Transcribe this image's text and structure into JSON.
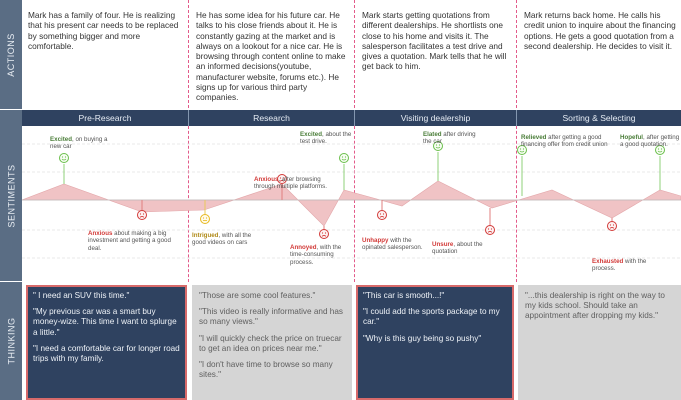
{
  "row_labels": {
    "actions": "ACTIONS",
    "sentiments": "SENTIMENTS",
    "thinking": "THINKING"
  },
  "actions": [
    {
      "text": "Mark has a family of four. He is realizing that his present car needs to be replaced by something bigger and more comfortable."
    },
    {
      "text": "He has some idea for his future car. He talks to his close friends about it. He is constantly gazing at the market and is always on a lookout for a nice car. He is browsing through content online to make an informed decisions(youtube, manufacturer website, forums etc.). He signs up for various third party companies."
    },
    {
      "text": "Mark starts getting quotations from different dealerships. He shortlists one close to his home and visits it. The salesperson facilitates a test drive and gives a quotation. Mark tells that he will get back to him."
    },
    {
      "text": "Mark returns back home. He calls his credit union to inquire about the financing options. He gets a good quotation from a second dealership. He decides to visit it."
    }
  ],
  "phases": [
    "Pre-Research",
    "Research",
    "Visiting dealership",
    "Sorting & Selecting"
  ],
  "colors": {
    "positive": "#6abf4b",
    "negative": "#d23a38",
    "neutral": "#e8b820",
    "curve_fill": "#f0c3c5",
    "phase_bar": "#2f4260"
  },
  "sentiments": [
    {
      "emotion": "Excited",
      "rest": ", on buying a new car",
      "tone": "positive"
    },
    {
      "emotion": "Anxious",
      "rest": " about making a big investment and getting a good deal.",
      "tone": "negative"
    },
    {
      "emotion": "Intrigued",
      "rest": ", with all the good videos on cars",
      "tone": "neutral"
    },
    {
      "emotion": "Anxious",
      "rest": ", after browsing through multiple platforms.",
      "tone": "negative"
    },
    {
      "emotion": "Annoyed",
      "rest": ", with the time-consuming process.",
      "tone": "negative"
    },
    {
      "emotion": "Excited",
      "rest": ", about the test drive.",
      "tone": "positive"
    },
    {
      "emotion": "Unhappy",
      "rest": " with the opinated salesperson.",
      "tone": "negative"
    },
    {
      "emotion": "Elated",
      "rest": " after driving the car",
      "tone": "positive"
    },
    {
      "emotion": "Unsure",
      "rest": ", about the quotation",
      "tone": "negative"
    },
    {
      "emotion": "Relieved",
      "rest": " after getting a good financing offer from credit union",
      "tone": "positive"
    },
    {
      "emotion": "Exhausted",
      "rest": " with the process.",
      "tone": "negative"
    },
    {
      "emotion": "Hopeful",
      "rest": ", after getting a good quotation.",
      "tone": "positive"
    }
  ],
  "thinking": [
    {
      "style": "dark",
      "highlight": true,
      "quotes": [
        "\" I need an SUV this time.\"",
        "\"My previous car was a smart buy money-wize. This time I want to splurge a little.\"",
        "\"I need a comfortable car for longer road trips with my family."
      ]
    },
    {
      "style": "light",
      "highlight": false,
      "quotes": [
        "\"Those are some cool features.\"",
        "\"This video is really informative and has so many views.\"",
        "\"I will quickly check the price on truecar to get an idea on prices near me.\"",
        "\"I don't have time to browse so many sites.\""
      ]
    },
    {
      "style": "dark",
      "highlight": true,
      "quotes": [
        "\"This car is smooth...!\"",
        "\"I could add the sports package to my car.\"",
        "\"Why is this guy being so pushy\""
      ]
    },
    {
      "style": "light",
      "highlight": false,
      "quotes": [
        "\"...this dealership is right on the way to my kids school. Should take an appointment after dropping my kids.\""
      ]
    }
  ]
}
